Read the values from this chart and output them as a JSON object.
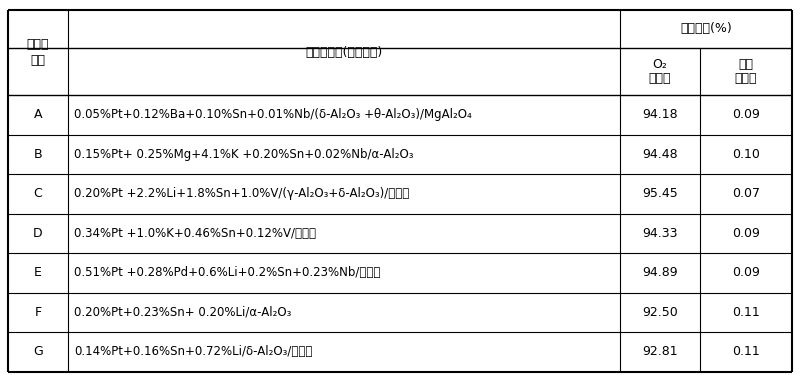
{
  "col1_header": [
    "催化剂",
    "编号"
  ],
  "col2_header": [
    "催化剂组成(以金属计)"
  ],
  "col3_header": [
    "反应结果(%)",
    "O₂\n选择性",
    "芳烃\n损失率"
  ],
  "rows": [
    {
      "id": "A",
      "composition": "0.05%Pt+0.12%Ba+0.10%Sn+0.01%Nb/(δ-Al₂O₃ +θ-Al₂O₃)/MgAl₂O₄",
      "o2": "94.18",
      "loss": "0.09"
    },
    {
      "id": "B",
      "composition": "0.15%Pt+ 0.25%Mg+4.1%K +0.20%Sn+0.02%Nb/α-Al₂O₃",
      "o2": "94.48",
      "loss": "0.10"
    },
    {
      "id": "C",
      "composition": "0.20%Pt +2.2%Li+1.8%Sn+1.0%V/(γ-Al₂O₃+δ-Al₂O₃)/莓来石",
      "o2": "95.45",
      "loss": "0.07"
    },
    {
      "id": "D",
      "composition": "0.34%Pt +1.0%K+0.46%Sn+0.12%V/董青石",
      "o2": "94.33",
      "loss": "0.09"
    },
    {
      "id": "E",
      "composition": "0.51%Pt +0.28%Pd+0.6%Li+0.2%Sn+0.23%Nb/尖晶石",
      "o2": "94.89",
      "loss": "0.09"
    },
    {
      "id": "F",
      "composition": "0.20%Pt+0.23%Sn+ 0.20%Li/α-Al₂O₃",
      "o2": "92.50",
      "loss": "0.11"
    },
    {
      "id": "G",
      "composition": "0.14%Pt+0.16%Sn+0.72%Li/δ-Al₂O₃/董青石",
      "o2": "92.81",
      "loss": "0.11"
    }
  ],
  "font_size": 9,
  "header_font_size": 9,
  "bg_color": "white",
  "border_color": "black",
  "line_color": "#333333"
}
